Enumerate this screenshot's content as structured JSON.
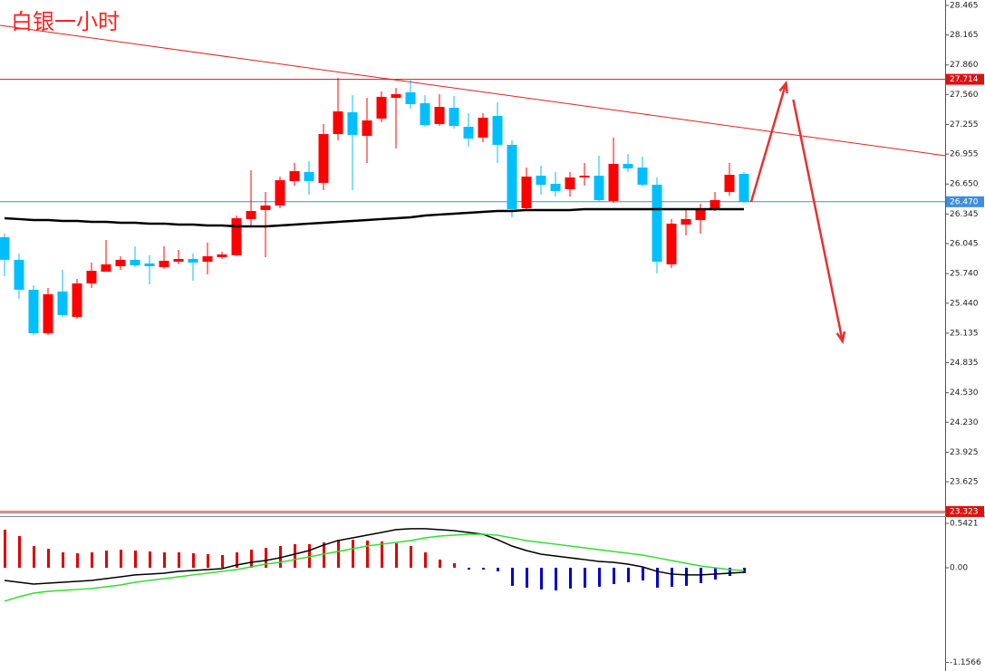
{
  "chart_data": [
    {
      "type": "candlestick",
      "title": "白银一小时",
      "title_color": "#ff2020",
      "up_color": "#ff0000",
      "down_color": "#00bfff",
      "open": [
        26.11,
        25.88,
        25.576,
        25.134,
        25.558,
        25.3,
        25.64,
        25.76,
        25.815,
        25.88,
        25.843,
        25.806,
        25.861,
        25.889,
        25.861,
        25.907,
        25.926,
        26.294,
        26.386,
        26.432,
        26.68,
        26.772,
        26.662,
        27.158,
        27.379,
        27.14,
        27.315,
        27.526,
        27.582,
        27.471,
        27.26,
        27.425,
        27.232,
        27.122,
        27.342,
        27.048,
        26.404,
        26.735,
        26.652,
        26.597,
        26.717,
        26.735,
        26.478,
        26.855,
        26.818,
        26.643,
        25.834,
        26.238,
        26.284,
        26.386,
        26.57,
        26.753
      ],
      "high": [
        26.146,
        25.944,
        25.622,
        25.594,
        25.778,
        25.686,
        25.852,
        26.082,
        25.916,
        26.018,
        25.926,
        26.018,
        25.981,
        25.944,
        26.054,
        25.962,
        26.33,
        26.79,
        26.57,
        26.726,
        26.864,
        26.882,
        27.26,
        27.729,
        27.554,
        27.526,
        27.591,
        27.628,
        27.72,
        27.554,
        27.563,
        27.545,
        27.37,
        27.37,
        27.48,
        27.094,
        26.818,
        26.836,
        26.772,
        26.772,
        26.864,
        26.938,
        27.122,
        26.956,
        26.928,
        26.717,
        26.294,
        26.404,
        26.45,
        26.57,
        26.864,
        26.772
      ],
      "low": [
        25.714,
        25.484,
        25.116,
        25.116,
        25.3,
        25.282,
        25.594,
        25.76,
        25.778,
        25.806,
        25.631,
        25.788,
        25.834,
        25.668,
        25.732,
        25.889,
        25.916,
        26.22,
        25.907,
        26.404,
        26.634,
        26.542,
        26.588,
        27.094,
        26.588,
        26.864,
        27.278,
        27.011,
        27.416,
        27.232,
        27.241,
        27.214,
        27.03,
        27.076,
        26.864,
        26.312,
        26.386,
        26.542,
        26.524,
        26.524,
        26.634,
        26.468,
        26.459,
        26.772,
        26.625,
        25.742,
        25.797,
        26.128,
        26.146,
        26.376,
        26.533,
        26.459
      ],
      "close": [
        25.88,
        25.576,
        25.134,
        25.53,
        25.318,
        25.64,
        25.769,
        25.834,
        25.88,
        25.824,
        25.815,
        25.87,
        25.889,
        25.852,
        25.916,
        25.935,
        26.303,
        26.376,
        26.432,
        26.689,
        26.781,
        26.68,
        27.158,
        27.388,
        27.149,
        27.296,
        27.536,
        27.563,
        27.462,
        27.25,
        27.434,
        27.241,
        27.112,
        27.324,
        27.048,
        26.395,
        26.726,
        26.643,
        26.579,
        26.717,
        26.735,
        26.487,
        26.855,
        26.809,
        26.643,
        25.861,
        26.248,
        26.294,
        26.386,
        26.487,
        26.744,
        26.47
      ],
      "ma": {
        "color": "#000000",
        "values": [
          26.303,
          26.294,
          26.284,
          26.284,
          26.275,
          26.275,
          26.266,
          26.266,
          26.257,
          26.257,
          26.248,
          26.248,
          26.238,
          26.238,
          26.229,
          26.229,
          26.22,
          26.22,
          26.22,
          26.229,
          26.238,
          26.248,
          26.257,
          26.266,
          26.275,
          26.284,
          26.294,
          26.303,
          26.312,
          26.33,
          26.34,
          26.349,
          26.358,
          26.367,
          26.376,
          26.376,
          26.386,
          26.386,
          26.386,
          26.386,
          26.395,
          26.395,
          26.395,
          26.395,
          26.395,
          26.395,
          26.395,
          26.395,
          26.395,
          26.395,
          26.395,
          26.395
        ]
      },
      "hlines": [
        {
          "value": 27.714,
          "color": "#e01010"
        },
        {
          "value": 26.47,
          "label": "26.470",
          "color": "#3a8fe0"
        },
        {
          "value": 23.323,
          "color": "#e01010"
        }
      ],
      "lines": [
        {
          "x": [
            -0.3,
            64.9
          ],
          "values": [
            28.262,
            26.938
          ],
          "color": "#e02020"
        }
      ],
      "arrows": [
        {
          "x": [
            51.5,
            53.9
          ],
          "values": [
            26.47,
            27.674
          ],
          "color": "#e83030"
        },
        {
          "x": [
            54.4,
            57.8
          ],
          "values": [
            27.508,
            25.052
          ],
          "color": "#e83030"
        }
      ],
      "ylim": [
        23.294,
        28.52
      ],
      "yticks": [
        28.465,
        28.165,
        {
          "value": 27.86,
          "label": "27.860"
        },
        {
          "value": 27.56,
          "label": "27.560"
        },
        27.255,
        26.955,
        {
          "value": 26.65,
          "label": "26.650"
        },
        26.345,
        26.045,
        {
          "value": 25.74,
          "label": "25.740"
        },
        {
          "value": 25.44,
          "label": "25.440"
        },
        25.135,
        24.835,
        {
          "value": 24.53,
          "label": "24.530"
        },
        {
          "value": 24.23,
          "label": "24.230"
        },
        23.925,
        23.625
      ]
    },
    {
      "type": "macd",
      "up_color": "#e00000",
      "down_color": "#0000cc",
      "values": [
        0.465,
        0.387,
        0.265,
        0.232,
        0.188,
        0.177,
        0.188,
        0.21,
        0.221,
        0.21,
        0.199,
        0.188,
        0.188,
        0.177,
        0.166,
        0.155,
        0.188,
        0.221,
        0.243,
        0.265,
        0.288,
        0.288,
        0.31,
        0.343,
        0.343,
        0.332,
        0.321,
        0.299,
        0.265,
        0.188,
        0.1,
        0.055,
        -0.022,
        -0.022,
        -0.044,
        -0.221,
        -0.243,
        -0.265,
        -0.277,
        -0.254,
        -0.243,
        -0.232,
        -0.199,
        -0.177,
        -0.155,
        -0.243,
        -0.232,
        -0.221,
        -0.188,
        -0.144,
        -0.1,
        -0.066
      ],
      "lines": [
        {
          "color": "#000000",
          "values": [
            -0.155,
            -0.177,
            -0.199,
            -0.188,
            -0.177,
            -0.166,
            -0.155,
            -0.133,
            -0.111,
            -0.088,
            -0.077,
            -0.066,
            -0.044,
            -0.033,
            -0.022,
            -0.011,
            0.033,
            0.066,
            0.088,
            0.122,
            0.166,
            0.21,
            0.277,
            0.332,
            0.365,
            0.398,
            0.431,
            0.465,
            0.476,
            0.476,
            0.465,
            0.453,
            0.431,
            0.409,
            0.343,
            0.265,
            0.21,
            0.166,
            0.144,
            0.122,
            0.1,
            0.077,
            0.066,
            0.044,
            0.011,
            -0.044,
            -0.077,
            -0.088,
            -0.088,
            -0.077,
            -0.066,
            -0.055
          ]
        },
        {
          "color": "#33dd33",
          "values": [
            -0.409,
            -0.354,
            -0.31,
            -0.288,
            -0.277,
            -0.265,
            -0.254,
            -0.232,
            -0.21,
            -0.177,
            -0.155,
            -0.133,
            -0.111,
            -0.088,
            -0.066,
            -0.044,
            -0.022,
            0.011,
            0.044,
            0.066,
            0.1,
            0.133,
            0.166,
            0.199,
            0.232,
            0.265,
            0.288,
            0.31,
            0.332,
            0.365,
            0.387,
            0.398,
            0.409,
            0.409,
            0.398,
            0.365,
            0.332,
            0.31,
            0.288,
            0.265,
            0.243,
            0.221,
            0.199,
            0.177,
            0.155,
            0.122,
            0.088,
            0.055,
            0.022,
            0,
            -0.022,
            -0.033
          ]
        }
      ],
      "ylim": [
        -1.261,
        0.608
      ],
      "yticks": [
        0.5421,
        {
          "value": 0,
          "label": "0.00"
        },
        -1.1566
      ]
    }
  ]
}
